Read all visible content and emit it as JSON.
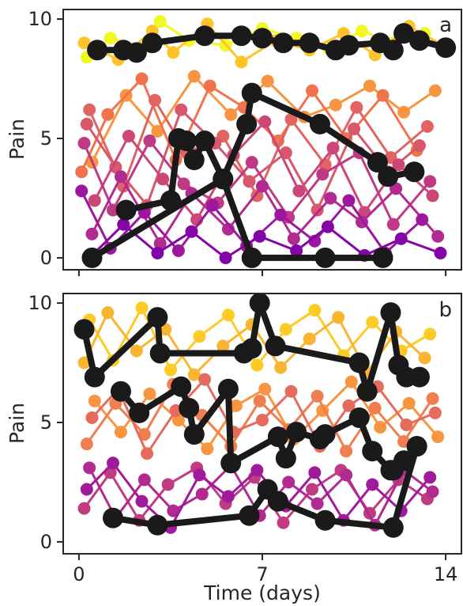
{
  "chart_data": [
    {
      "type": "line",
      "panel_label": "a",
      "ylabel": "Pain",
      "xlabel": "",
      "xlim": [
        -0.6,
        14.6
      ],
      "ylim": [
        -0.5,
        10.4
      ],
      "yticks": [
        0,
        5,
        10
      ],
      "xticks": [
        0,
        7,
        14
      ],
      "xtick_labels_shown": false,
      "colormap": "plasma",
      "background_series": [
        {
          "color": "#f0f921",
          "x": [
            0.3,
            1.2,
            2.5,
            3.1,
            4.2,
            5.6,
            7.0,
            8.3,
            9.5,
            10.8,
            12.0,
            13.2
          ],
          "y": [
            8.4,
            9.2,
            8.8,
            9.9,
            9.1,
            8.9,
            9.6,
            9.2,
            8.8,
            9.5,
            9.0,
            9.4
          ]
        },
        {
          "color": "#fdc328",
          "x": [
            0.2,
            1.5,
            2.8,
            3.6,
            4.9,
            6.2,
            7.5,
            8.8,
            10.1,
            11.3,
            12.6,
            13.9
          ],
          "y": [
            9.0,
            8.3,
            9.5,
            8.6,
            9.8,
            8.2,
            9.1,
            8.7,
            9.4,
            8.5,
            9.7,
            8.9
          ]
        },
        {
          "color": "#f89540",
          "x": [
            0.5,
            1.8,
            3.0,
            4.4,
            5.8,
            7.2,
            8.6,
            9.8,
            11.1,
            12.4,
            13.6
          ],
          "y": [
            4.0,
            6.8,
            5.3,
            7.6,
            6.0,
            7.4,
            5.9,
            6.4,
            7.2,
            6.1,
            7.0
          ]
        },
        {
          "color": "#f0734d",
          "x": [
            0.1,
            1.1,
            2.4,
            3.7,
            5.0,
            6.3,
            7.6,
            8.9,
            10.2,
            11.6,
            12.9
          ],
          "y": [
            3.6,
            6.0,
            7.5,
            4.1,
            7.2,
            6.3,
            4.9,
            7.0,
            5.0,
            6.8,
            4.5
          ]
        },
        {
          "color": "#e16462",
          "x": [
            0.4,
            1.7,
            2.9,
            4.1,
            5.5,
            6.8,
            8.1,
            9.4,
            10.6,
            11.9,
            13.3
          ],
          "y": [
            6.2,
            3.0,
            6.6,
            4.4,
            5.1,
            2.6,
            5.8,
            3.9,
            6.3,
            4.2,
            5.5
          ]
        },
        {
          "color": "#d8576b",
          "x": [
            0.3,
            1.4,
            2.6,
            3.9,
            5.2,
            6.5,
            7.9,
            9.1,
            10.5,
            11.8,
            13.0
          ],
          "y": [
            5.6,
            3.8,
            2.2,
            6.2,
            4.8,
            3.2,
            4.4,
            2.0,
            5.4,
            3.6,
            4.7
          ]
        },
        {
          "color": "#cc4778",
          "x": [
            0.6,
            1.9,
            3.2,
            4.5,
            5.9,
            7.1,
            8.4,
            9.7,
            10.9,
            12.2,
            13.5
          ],
          "y": [
            2.4,
            5.1,
            3.3,
            1.6,
            4.3,
            5.7,
            2.8,
            4.6,
            1.9,
            3.9,
            2.6
          ]
        },
        {
          "color": "#bf3984",
          "x": [
            0.2,
            1.3,
            2.7,
            4.0,
            5.3,
            6.6,
            8.0,
            9.3,
            10.7,
            12.0,
            13.4
          ],
          "y": [
            4.8,
            2.0,
            4.9,
            3.1,
            2.3,
            4.0,
            1.7,
            3.5,
            4.4,
            1.4,
            3.2
          ]
        },
        {
          "color": "#b12a90",
          "x": [
            0.5,
            1.6,
            3.1,
            4.3,
            5.7,
            7.0,
            8.2,
            9.6,
            10.8,
            12.1,
            13.7
          ],
          "y": [
            1.0,
            3.4,
            0.6,
            2.7,
            1.2,
            3.0,
            0.8,
            2.5,
            1.5,
            2.9,
            0.9
          ]
        },
        {
          "color": "#9c179e",
          "x": [
            0.1,
            1.2,
            2.5,
            3.8,
            5.1,
            6.4,
            7.7,
            9.0,
            10.3,
            11.7,
            13.1
          ],
          "y": [
            2.8,
            0.4,
            1.9,
            0.3,
            2.2,
            0.5,
            1.8,
            0.7,
            2.4,
            0.2,
            1.6
          ]
        },
        {
          "color": "#8405a7",
          "x": [
            0.4,
            1.7,
            3.0,
            4.3,
            5.6,
            6.9,
            8.3,
            9.5,
            10.9,
            12.3,
            13.8
          ],
          "y": [
            0.0,
            1.4,
            0.2,
            1.1,
            0.0,
            0.9,
            0.3,
            1.3,
            0.1,
            0.8,
            0.2
          ]
        }
      ],
      "highlight_series": [
        {
          "color": "#1a1a1a",
          "x": [
            0.7,
            1.7,
            2.2,
            2.8,
            4.8,
            6.2,
            7.0,
            7.8,
            8.8,
            9.8,
            10.3,
            11.5,
            12.0,
            12.4,
            13.0,
            14.0
          ],
          "y": [
            8.7,
            8.7,
            8.6,
            9.0,
            9.3,
            9.3,
            9.2,
            9.0,
            9.0,
            8.7,
            8.9,
            9.0,
            8.7,
            9.4,
            9.1,
            8.8
          ]
        },
        {
          "color": "#1a1a1a",
          "x": [
            1.8,
            3.5,
            3.8,
            4.1,
            4.4,
            4.8,
            5.5,
            6.4,
            6.6,
            9.2,
            11.4,
            11.8,
            12.8
          ],
          "y": [
            2.0,
            2.4,
            5.0,
            4.9,
            4.1,
            4.9,
            3.3,
            5.6,
            6.9,
            5.6,
            4.0,
            3.4,
            3.6
          ]
        },
        {
          "color": "#1a1a1a",
          "x": [
            0.5,
            5.5,
            6.6,
            9.4,
            11.6
          ],
          "y": [
            0.0,
            3.3,
            0.0,
            0.0,
            0.0
          ]
        }
      ]
    },
    {
      "type": "line",
      "panel_label": "b",
      "ylabel": "Pain",
      "xlabel": "Time (days)",
      "xlim": [
        -0.6,
        14.6
      ],
      "ylim": [
        -0.5,
        10.4
      ],
      "yticks": [
        0,
        5,
        10
      ],
      "xticks": [
        0,
        7,
        14
      ],
      "xtick_labels": [
        "0",
        "7",
        "14"
      ],
      "colormap": "plasma",
      "background_series": [
        {
          "color": "#fdca26",
          "x": [
            0.4,
            1.3,
            2.4,
            3.5,
            4.6,
            5.7,
            6.8,
            7.9,
            9.0,
            10.1,
            11.2,
            12.3,
            13.4
          ],
          "y": [
            9.3,
            7.6,
            9.8,
            7.2,
            8.6,
            9.5,
            7.4,
            8.9,
            9.7,
            7.8,
            9.2,
            8.0,
            8.7
          ]
        },
        {
          "color": "#f9b52f",
          "x": [
            0.2,
            1.1,
            2.2,
            3.3,
            4.4,
            5.5,
            6.6,
            7.7,
            8.8,
            9.9,
            11.0,
            12.1,
            13.2
          ],
          "y": [
            7.5,
            9.6,
            8.0,
            8.9,
            7.0,
            8.2,
            9.1,
            7.3,
            8.5,
            9.4,
            7.1,
            8.8,
            7.7
          ]
        },
        {
          "color": "#f89540",
          "x": [
            0.6,
            1.6,
            2.7,
            3.8,
            4.9,
            6.0,
            7.1,
            8.2,
            9.3,
            10.4,
            11.5,
            12.6,
            13.7
          ],
          "y": [
            5.9,
            4.6,
            6.2,
            5.1,
            3.9,
            5.7,
            6.4,
            4.3,
            5.5,
            6.7,
            4.8,
            5.8,
            4.4
          ]
        },
        {
          "color": "#ef7e50",
          "x": [
            0.3,
            1.4,
            2.5,
            3.6,
            4.7,
            5.8,
            6.9,
            8.0,
            9.1,
            10.2,
            11.3,
            12.4,
            13.5
          ],
          "y": [
            4.1,
            5.8,
            4.5,
            6.6,
            5.3,
            4.0,
            5.9,
            4.7,
            6.1,
            3.8,
            5.6,
            4.2,
            6.0
          ]
        },
        {
          "color": "#e56b5d",
          "x": [
            0.5,
            1.5,
            2.6,
            3.7,
            4.8,
            5.9,
            7.0,
            8.1,
            9.2,
            10.3,
            11.4,
            12.5,
            13.6
          ],
          "y": [
            5.2,
            6.4,
            3.7,
            5.5,
            6.8,
            4.6,
            5.1,
            6.3,
            4.0,
            5.7,
            6.5,
            4.9,
            5.4
          ]
        },
        {
          "color": "#c13b82",
          "x": [
            0.2,
            1.2,
            2.3,
            3.4,
            4.5,
            5.6,
            6.7,
            7.8,
            8.9,
            10.0,
            11.1,
            12.2,
            13.3
          ],
          "y": [
            1.4,
            2.9,
            0.9,
            2.4,
            3.1,
            1.6,
            2.7,
            0.8,
            2.2,
            3.0,
            1.2,
            2.6,
            1.8
          ]
        },
        {
          "color": "#b12a90",
          "x": [
            0.4,
            1.4,
            2.5,
            3.6,
            4.7,
            5.8,
            6.9,
            8.0,
            9.1,
            10.2,
            11.3,
            12.4,
            13.5
          ],
          "y": [
            3.1,
            1.0,
            2.6,
            1.3,
            2.0,
            3.2,
            1.1,
            2.5,
            1.6,
            2.8,
            0.7,
            3.0,
            2.1
          ]
        },
        {
          "color": "#a01a9c",
          "x": [
            0.3,
            1.3,
            2.4,
            3.5,
            4.6,
            5.7,
            6.8,
            7.9,
            9.0,
            10.1,
            11.2,
            12.3,
            13.4
          ],
          "y": [
            2.2,
            3.3,
            1.7,
            0.6,
            2.8,
            1.9,
            3.0,
            1.5,
            2.9,
            0.9,
            2.4,
            1.3,
            2.7
          ]
        }
      ],
      "highlight_series": [
        {
          "color": "#1a1a1a",
          "x": [
            0.2,
            0.6,
            3.0,
            3.1,
            6.3,
            6.6,
            6.9,
            7.5,
            10.7,
            11.0,
            11.9,
            12.2,
            12.5,
            13.0
          ],
          "y": [
            8.9,
            6.9,
            9.4,
            7.9,
            7.9,
            8.1,
            10.0,
            8.2,
            7.5,
            6.3,
            9.6,
            7.4,
            6.9,
            6.9
          ]
        },
        {
          "color": "#1a1a1a",
          "x": [
            1.6,
            2.3,
            3.9,
            4.2,
            4.4,
            5.7,
            5.8,
            7.6,
            7.9,
            8.3,
            9.2,
            9.4,
            10.7,
            11.2,
            11.9,
            12.0,
            12.4,
            12.9
          ],
          "y": [
            6.3,
            5.4,
            6.5,
            5.6,
            4.5,
            6.4,
            3.3,
            4.4,
            3.5,
            4.6,
            4.3,
            4.5,
            5.2,
            3.8,
            3.0,
            3.0,
            3.4,
            4.0
          ]
        },
        {
          "color": "#1a1a1a",
          "x": [
            1.3,
            3.0,
            6.5,
            7.2,
            7.6,
            9.4,
            12.0,
            12.9
          ],
          "y": [
            1.0,
            0.7,
            1.1,
            2.2,
            1.7,
            0.9,
            0.6,
            4.0
          ]
        }
      ]
    }
  ]
}
